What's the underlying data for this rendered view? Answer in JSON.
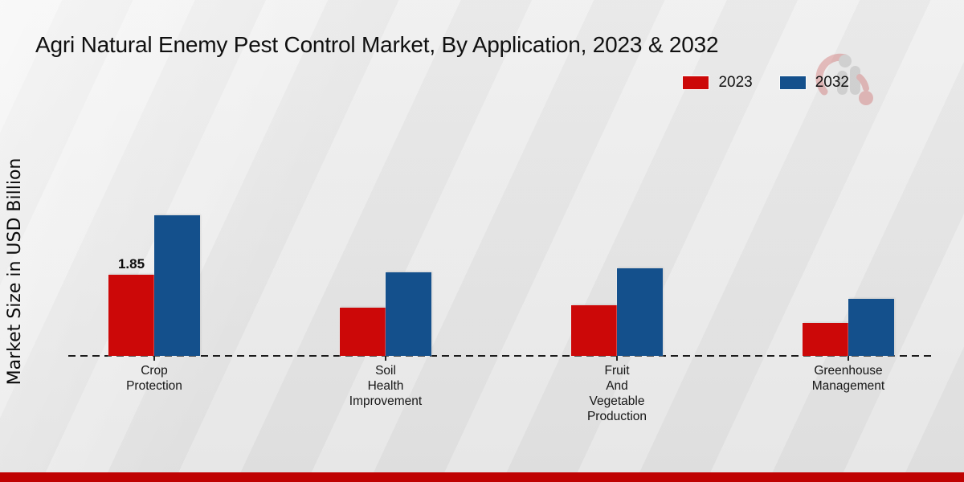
{
  "title": "Agri Natural Enemy Pest Control Market, By Application, 2023 & 2032",
  "ylabel": "Market Size in USD Billion",
  "chart_data": {
    "type": "bar",
    "title": "Agri Natural Enemy Pest Control Market, By Application, 2023 & 2032",
    "ylabel": "Market Size in USD Billion",
    "categories": [
      "Crop Protection",
      "Soil Health Improvement",
      "Fruit And Vegetable Production",
      "Greenhouse Management"
    ],
    "category_label_lines": [
      [
        "Crop",
        "Protection"
      ],
      [
        "Soil",
        "Health",
        "Improvement"
      ],
      [
        "Fruit",
        "And",
        "Vegetable",
        "Production"
      ],
      [
        "Greenhouse",
        "Management"
      ]
    ],
    "series": [
      {
        "name": "2023",
        "color": "#cc0808",
        "values": [
          1.85,
          1.1,
          1.15,
          0.75
        ]
      },
      {
        "name": "2032",
        "color": "#14508c",
        "values": [
          3.2,
          1.9,
          2.0,
          1.3
        ]
      }
    ],
    "value_labels": [
      {
        "series_index": 0,
        "category_index": 0,
        "text": "1.85"
      }
    ],
    "ylim": [
      0,
      3.5
    ],
    "grid": false,
    "legend_position": "top-right",
    "baseline_style": "dashed",
    "units": "USD Billion"
  },
  "colors": {
    "series_2023": "#cc0808",
    "series_2032": "#14508c",
    "footer_band": "#bf0202",
    "background": "#e9e9e9",
    "axis_line": "#1b1b1b",
    "text": "#111111",
    "watermark_gray": "#9e9e9e",
    "watermark_red": "#c84a4a"
  }
}
